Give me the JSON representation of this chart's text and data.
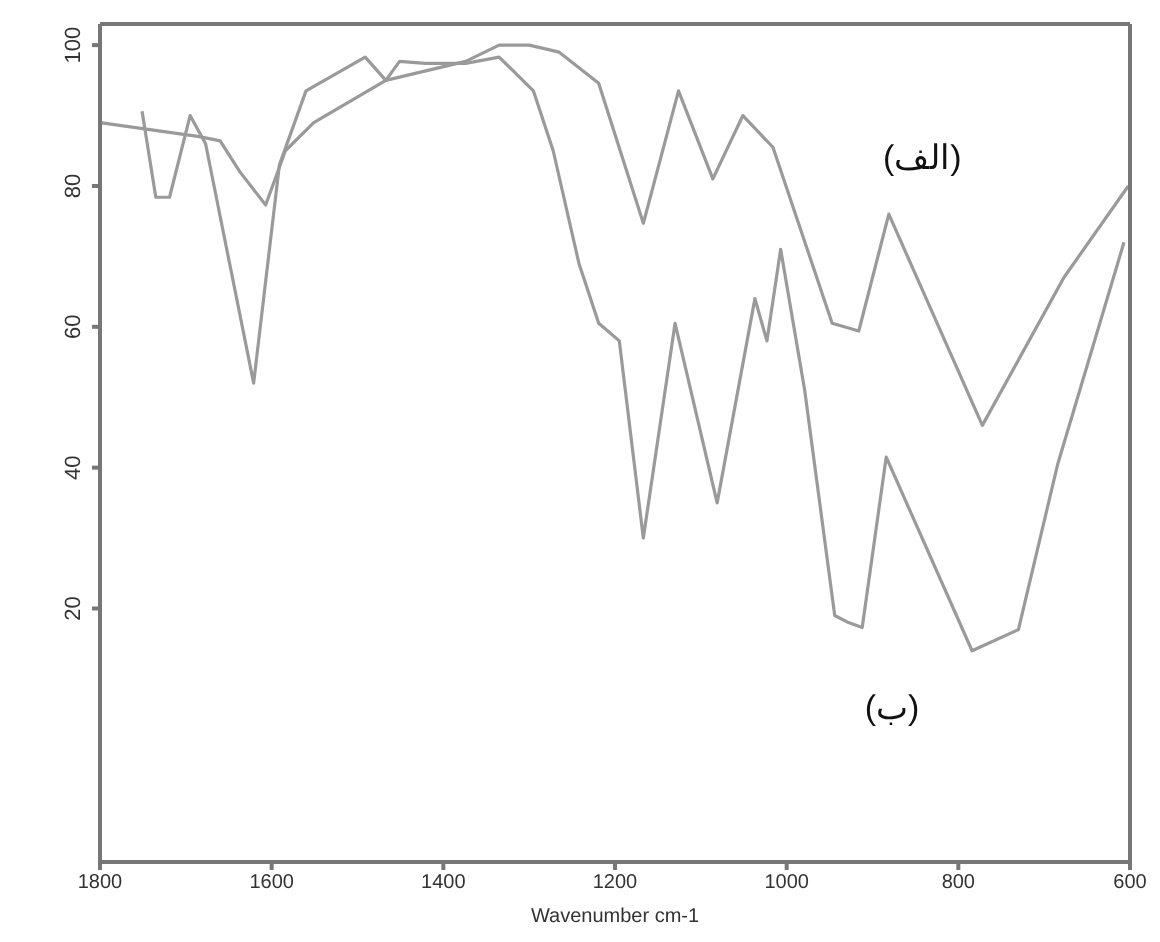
{
  "chart_data": {
    "type": "line",
    "xlabel": "Wavenumber cm-1",
    "xlim": [
      1800,
      600
    ],
    "xticks": [
      1800,
      1600,
      1400,
      1200,
      1000,
      800,
      600
    ],
    "ylim": [
      -16,
      103
    ],
    "yticks": [
      20,
      40,
      60,
      80,
      100
    ],
    "marker": "none",
    "line_style": "solid",
    "series": [
      {
        "name": "(الف)",
        "color": "#9a9a9a",
        "x": [
          1800,
          1684,
          1660,
          1637,
          1607,
          1584,
          1551,
          1467,
          1374,
          1335,
          1300,
          1265,
          1219,
          1167,
          1126,
          1086,
          1051,
          1016,
          947,
          916,
          881,
          772,
          677,
          602
        ],
        "values": [
          89,
          87,
          86.4,
          82,
          77.3,
          85,
          89,
          95,
          97.7,
          100,
          100,
          99,
          94.6,
          74.7,
          93.5,
          81,
          90,
          85.5,
          60.5,
          59.4,
          76,
          46,
          67,
          80
        ]
      },
      {
        "name": "(ب)",
        "color": "#9a9a9a",
        "x": [
          1751,
          1735,
          1719,
          1695,
          1677,
          1621,
          1591,
          1560,
          1491,
          1467,
          1451,
          1421,
          1374,
          1335,
          1295,
          1272,
          1242,
          1219,
          1195,
          1167,
          1130,
          1081,
          1037,
          1023,
          1007,
          979,
          944,
          928,
          912,
          884,
          784,
          730,
          684,
          607
        ],
        "values": [
          90.6,
          78.4,
          78.4,
          90,
          86,
          52,
          83,
          93.5,
          98.3,
          95,
          97.7,
          97.4,
          97.4,
          98.3,
          93.5,
          85,
          69,
          60.5,
          58,
          30,
          60.5,
          35,
          64,
          58,
          71,
          51,
          19,
          18,
          17.3,
          41.5,
          14,
          17,
          40.6,
          72
        ]
      }
    ]
  }
}
